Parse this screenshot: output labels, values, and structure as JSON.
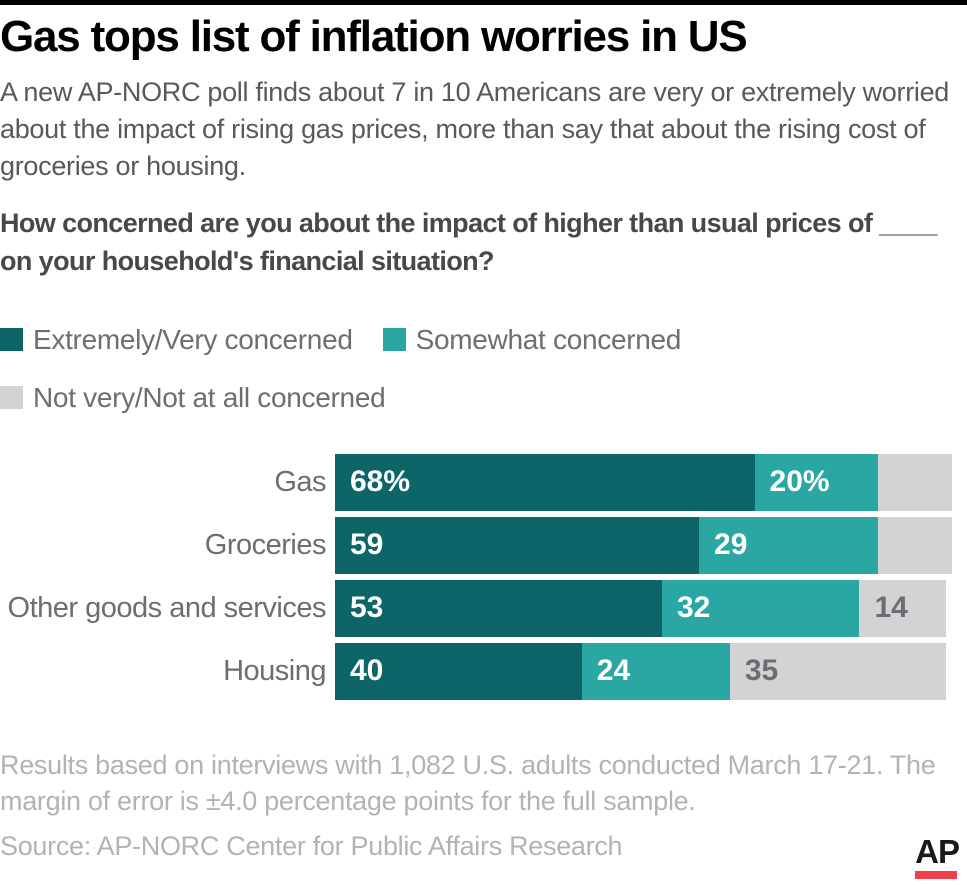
{
  "header": {
    "title": "Gas tops list of inflation worries in US",
    "subtitle": "A new AP-NORC poll finds about 7 in 10 Americans are very or extremely worried about the impact of rising gas prices, more than say that about the rising cost of groceries or housing.",
    "question": "How concerned are you about the impact of higher than usual prices of ____ on your household's financial situation?"
  },
  "chart_data": {
    "type": "bar",
    "orientation": "horizontal-stacked",
    "xlim": [
      0,
      100
    ],
    "grid": false,
    "legend_position": "top-left",
    "categories": [
      "Gas",
      "Groceries",
      "Other goods and services",
      "Housing"
    ],
    "series": [
      {
        "name": "Extremely/Very concerned",
        "color": "#0d6567",
        "values": [
          68,
          59,
          53,
          40
        ],
        "labels": [
          "68%",
          "59",
          "53",
          "40"
        ]
      },
      {
        "name": "Somewhat concerned",
        "color": "#2aa7a3",
        "values": [
          20,
          29,
          32,
          24
        ],
        "labels": [
          "20%",
          "29",
          "32",
          "24"
        ]
      },
      {
        "name": "Not very/Not at all concerned",
        "color": "#d2d3d4",
        "values": [
          12,
          12,
          14,
          35
        ],
        "labels": [
          "",
          "",
          "14",
          "35"
        ]
      }
    ]
  },
  "footer": {
    "note": "Results based on interviews with 1,082 U.S. adults conducted March 17-21. The margin of error is ±4.0 percentage points for the full sample.",
    "source": "Source: AP-NORC Center for Public Affairs Research"
  },
  "logo": {
    "text": "AP",
    "underline_color": "#ee404b"
  },
  "colors": {
    "topbar": "#000000",
    "value_label_light": "#ffffff",
    "value_label_gray": "#6d6e71"
  }
}
